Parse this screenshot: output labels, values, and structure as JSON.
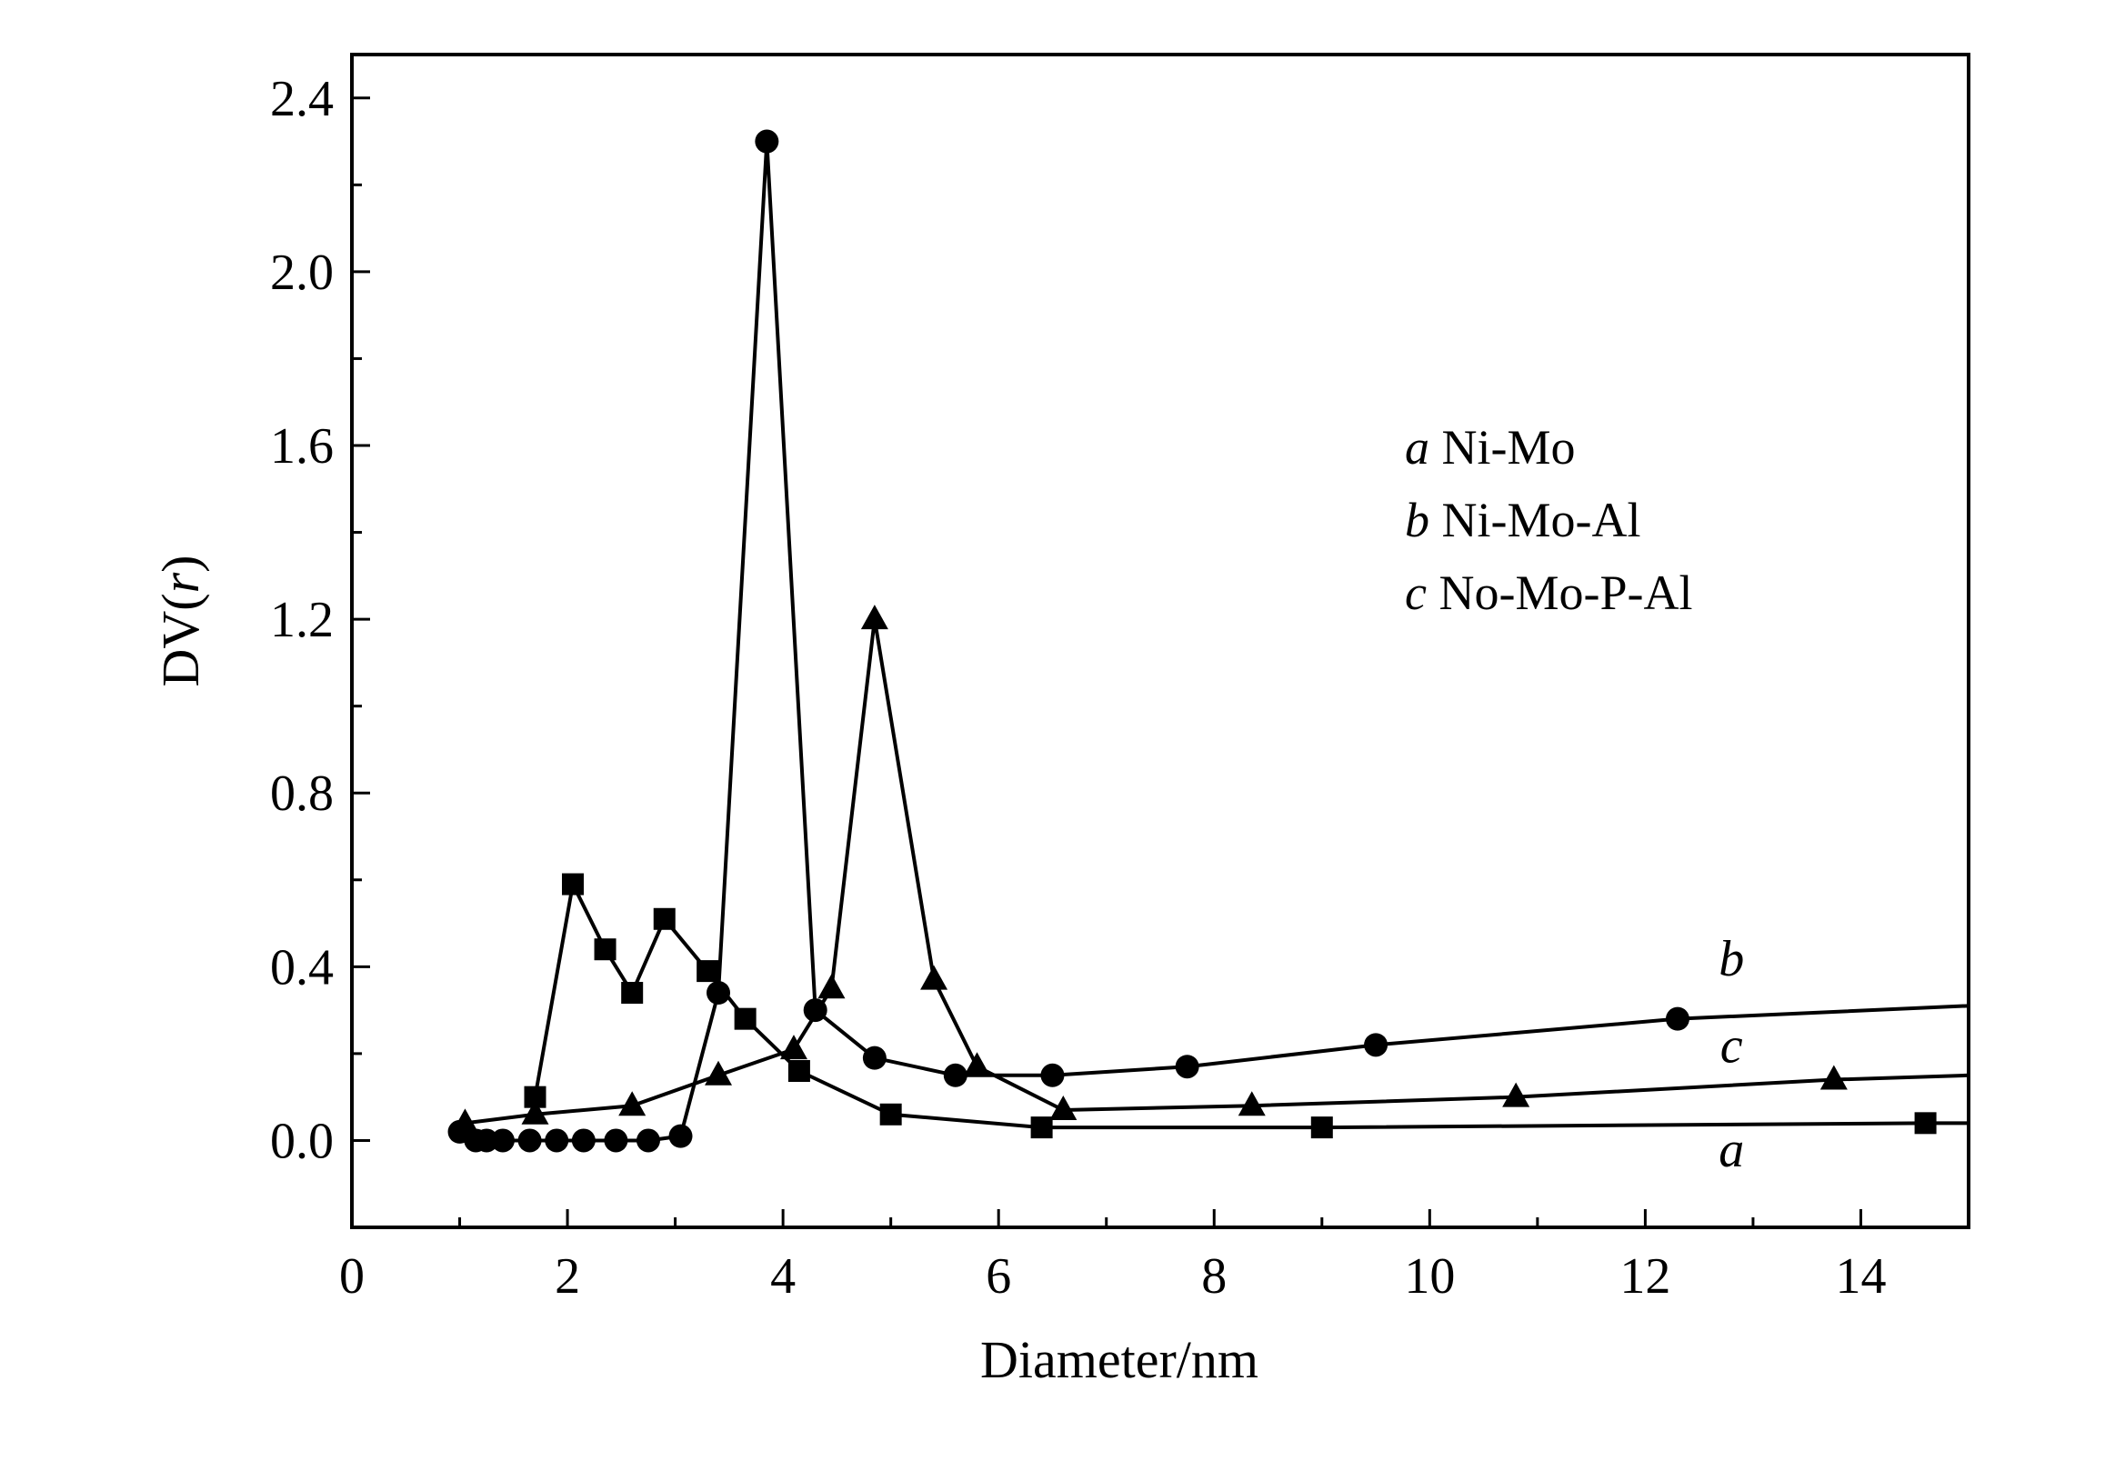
{
  "chart_data": {
    "type": "line",
    "title": "",
    "xlabel": "Diameter/nm",
    "ylabel_prefix": "DV(",
    "ylabel_var": "r",
    "ylabel_suffix": ")",
    "xlim": [
      0,
      15
    ],
    "ylim": [
      -0.2,
      2.5
    ],
    "x_ticks": [
      0,
      2,
      4,
      6,
      8,
      10,
      12,
      14
    ],
    "x_tick_labels": [
      "0",
      "2",
      "4",
      "6",
      "8",
      "10",
      "12",
      "14"
    ],
    "y_ticks": [
      0.0,
      0.4,
      0.8,
      1.2,
      1.6,
      2.0,
      2.4
    ],
    "y_tick_labels": [
      "0.0",
      "0.4",
      "0.8",
      "1.2",
      "1.6",
      "2.0",
      "2.4"
    ],
    "grid": false,
    "legend_position": "upper-right",
    "legend": [
      {
        "key": "a",
        "text": "Ni-Mo"
      },
      {
        "key": "b",
        "text": "Ni-Mo-Al"
      },
      {
        "key": "c",
        "text": "No-Mo-P-Al"
      }
    ],
    "series": [
      {
        "key": "a",
        "marker": "square",
        "label_at": [
          12.8,
          -0.06
        ],
        "x": [
          1.7,
          2.05,
          2.35,
          2.6,
          2.9,
          3.3,
          3.65,
          4.15,
          5.0,
          6.4,
          9.0,
          14.6
        ],
        "y": [
          0.1,
          0.59,
          0.44,
          0.34,
          0.51,
          0.39,
          0.28,
          0.16,
          0.06,
          0.03,
          0.03,
          0.04
        ],
        "line_end": [
          15.0,
          0.04
        ]
      },
      {
        "key": "b",
        "marker": "circle",
        "label_at": [
          12.8,
          0.38
        ],
        "x": [
          1.0,
          1.15,
          1.25,
          1.4,
          1.65,
          1.9,
          2.15,
          2.45,
          2.75,
          3.05,
          3.4,
          3.85,
          4.3,
          4.85,
          5.6,
          6.5,
          7.75,
          9.5,
          12.3
        ],
        "y": [
          0.02,
          0.0,
          0.0,
          0.0,
          0.0,
          0.0,
          0.0,
          0.0,
          0.0,
          0.01,
          0.34,
          2.3,
          0.3,
          0.19,
          0.15,
          0.15,
          0.17,
          0.22,
          0.28
        ],
        "line_end": [
          15.0,
          0.31
        ]
      },
      {
        "key": "c",
        "marker": "triangle",
        "label_at": [
          12.8,
          0.18
        ],
        "x": [
          1.05,
          1.7,
          2.6,
          3.4,
          4.1,
          4.45,
          4.85,
          5.4,
          5.8,
          6.6,
          8.35,
          10.8,
          13.75
        ],
        "y": [
          0.04,
          0.06,
          0.08,
          0.15,
          0.21,
          0.35,
          1.2,
          0.37,
          0.17,
          0.07,
          0.08,
          0.1,
          0.14
        ],
        "line_end": [
          15.0,
          0.15
        ]
      }
    ]
  }
}
